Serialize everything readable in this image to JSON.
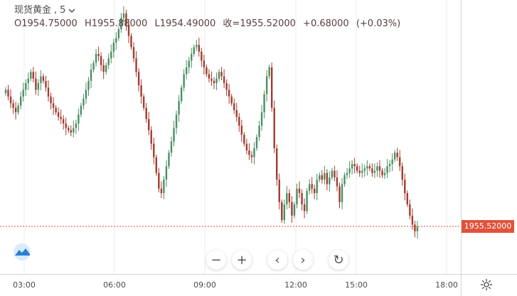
{
  "legend": {
    "symbol": "现货黄金",
    "interval": "5",
    "open_prefix": "O",
    "open": "1954.75000",
    "high_prefix": "H",
    "high": "1955.88000",
    "low_prefix": "L",
    "low": "1954.49000",
    "close_prefix": "收=",
    "close": "1955.52000",
    "change": "+0.68000",
    "change_pct": "(+0.03%)"
  },
  "price_tag": "1955.52000",
  "controls": {
    "zoom_out": "−",
    "zoom_in": "+",
    "scroll_left": "‹",
    "scroll_right": "›",
    "reset": "↻"
  },
  "colors": {
    "up": "#4a8f62",
    "down": "#a33a2e",
    "price_line": "#e0533b",
    "grid": "#eeeeee"
  },
  "chart_data": {
    "type": "candlestick",
    "x_ticks": [
      "03:00",
      "06:00",
      "09:00",
      "12:00",
      "15:00",
      "18:00"
    ],
    "last_price": 1955.52,
    "ylim": [
      1953.4,
      1965.6
    ],
    "close_series": [
      1961.6,
      1961.3,
      1961.0,
      1960.8,
      1960.6,
      1960.9,
      1961.3,
      1961.6,
      1961.9,
      1962.1,
      1962.4,
      1962.1,
      1961.6,
      1961.9,
      1962.2,
      1962.0,
      1961.7,
      1961.3,
      1961.0,
      1960.8,
      1960.6,
      1960.4,
      1960.3,
      1960.1,
      1959.9,
      1959.8,
      1959.7,
      1959.9,
      1960.1,
      1960.5,
      1960.9,
      1961.2,
      1961.6,
      1962.0,
      1962.5,
      1962.8,
      1963.2,
      1963.1,
      1962.7,
      1962.4,
      1962.7,
      1963.0,
      1963.3,
      1963.7,
      1963.9,
      1964.3,
      1964.8,
      1965.0,
      1964.5,
      1964.0,
      1963.5,
      1963.0,
      1962.4,
      1961.8,
      1961.3,
      1960.8,
      1960.3,
      1959.8,
      1959.2,
      1958.6,
      1957.9,
      1957.2,
      1957.0,
      1957.6,
      1958.2,
      1958.8,
      1959.3,
      1959.9,
      1960.5,
      1961.1,
      1961.7,
      1962.3,
      1962.6,
      1962.9,
      1963.2,
      1963.5,
      1963.6,
      1963.3,
      1962.9,
      1962.6,
      1962.3,
      1962.1,
      1962.0,
      1961.9,
      1962.1,
      1962.4,
      1962.2,
      1961.9,
      1961.6,
      1961.3,
      1961.0,
      1960.7,
      1960.4,
      1960.0,
      1959.6,
      1959.2,
      1958.9,
      1958.7,
      1958.6,
      1959.0,
      1959.5,
      1960.0,
      1960.6,
      1961.4,
      1962.2,
      1962.6,
      1960.8,
      1959.0,
      1957.6,
      1956.6,
      1955.8,
      1956.5,
      1957.0,
      1956.6,
      1956.0,
      1956.5,
      1957.2,
      1957.0,
      1956.5,
      1956.2,
      1957.1,
      1957.4,
      1957.2,
      1957.0,
      1957.6,
      1957.8,
      1957.6,
      1957.9,
      1957.4,
      1957.7,
      1958.0,
      1957.7,
      1957.3,
      1956.6,
      1957.4,
      1957.8,
      1957.9,
      1958.1,
      1958.3,
      1958.2,
      1958.0,
      1957.9,
      1958.0,
      1958.1,
      1958.2,
      1958.1,
      1957.9,
      1958.0,
      1958.2,
      1958.0,
      1957.8,
      1957.9,
      1958.2,
      1958.3,
      1958.5,
      1958.8,
      1958.6,
      1958.2,
      1957.6,
      1957.0,
      1956.5,
      1956.0,
      1955.6,
      1955.3,
      1955.5
    ]
  }
}
